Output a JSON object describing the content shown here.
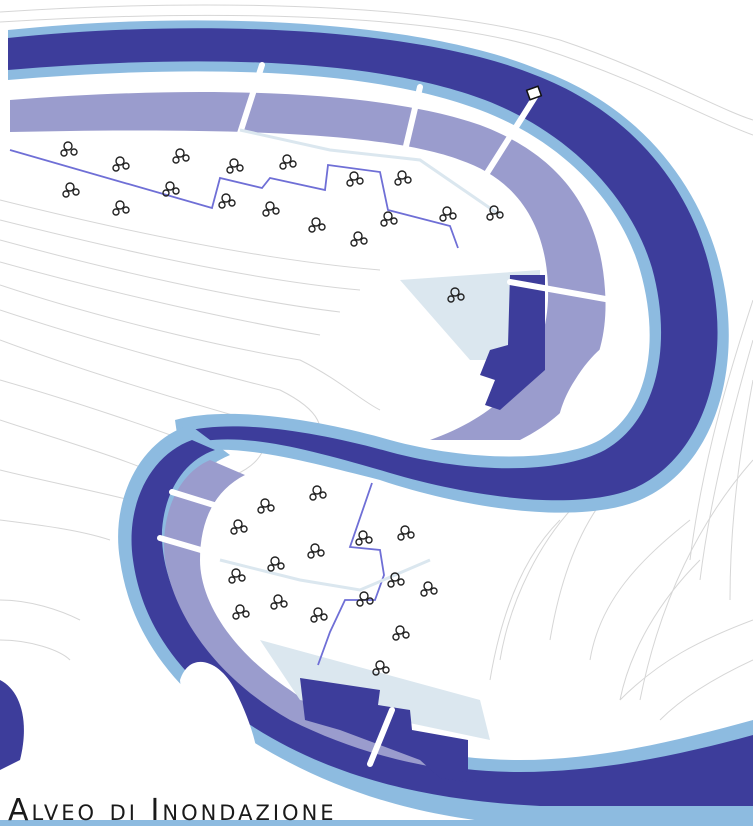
{
  "title": "Alveo di Inondazione",
  "colors": {
    "river": "#3d3d9b",
    "river_edge": "#8dbbe0",
    "floodplain": "#c6dced",
    "embankment": "#9a9ccd",
    "pale_band": "#dbe7ef",
    "buildings": "#3d3d9b",
    "path": "#6f6fd6",
    "contour": "#d3d3d3",
    "tree": "#222222"
  },
  "icons": [
    "tree-icon",
    "marker-icon"
  ],
  "features": {
    "north_trees": 22,
    "south_trees": 16,
    "islands": 2,
    "piers": 7
  }
}
